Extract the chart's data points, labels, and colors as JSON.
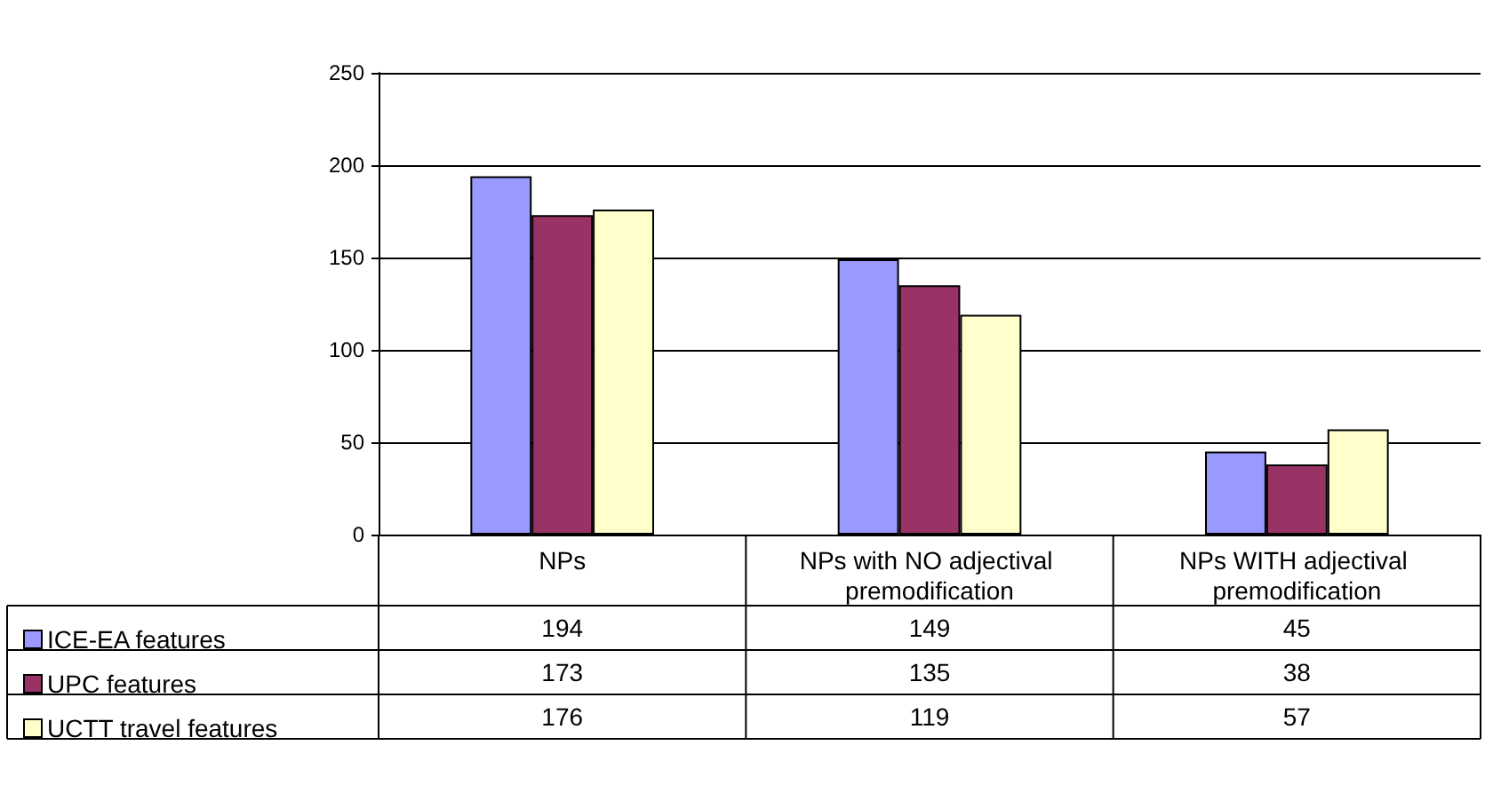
{
  "chart_data": {
    "type": "bar",
    "categories": [
      "NPs",
      "NPs with NO adjectival premodification",
      "NPs WITH adjectival premodification"
    ],
    "series": [
      {
        "name": "ICE-EA features",
        "color": "#9999ff",
        "values": [
          194,
          149,
          45
        ]
      },
      {
        "name": "UPC features",
        "color": "#993366",
        "values": [
          173,
          135,
          38
        ]
      },
      {
        "name": "UCTT travel features",
        "color": "#ffffcc",
        "values": [
          176,
          119,
          57
        ]
      }
    ],
    "ylim": [
      0,
      250
    ],
    "yticks": [
      0,
      50,
      100,
      150,
      200,
      250
    ],
    "grid": "y",
    "legend": "bottom left",
    "data_labels": true
  }
}
